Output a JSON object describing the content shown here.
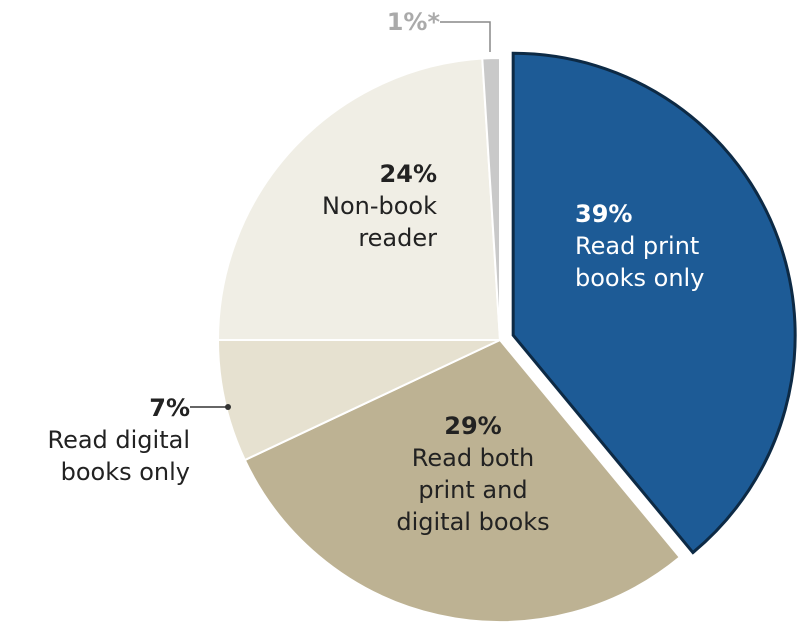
{
  "chart_data": {
    "type": "pie",
    "categories": [
      "Read print books only",
      "Read both print and digital books",
      "Read digital books only",
      "Non-book reader",
      null
    ],
    "values": [
      39,
      29,
      7,
      24,
      1
    ],
    "value_labels": [
      "39%",
      "29%",
      "7%",
      "24%",
      "1%*"
    ],
    "colors": [
      "#1d5b96",
      "#bdb293",
      "#e6e1d0",
      "#f0eee5",
      "#c9c9c9"
    ]
  }
}
